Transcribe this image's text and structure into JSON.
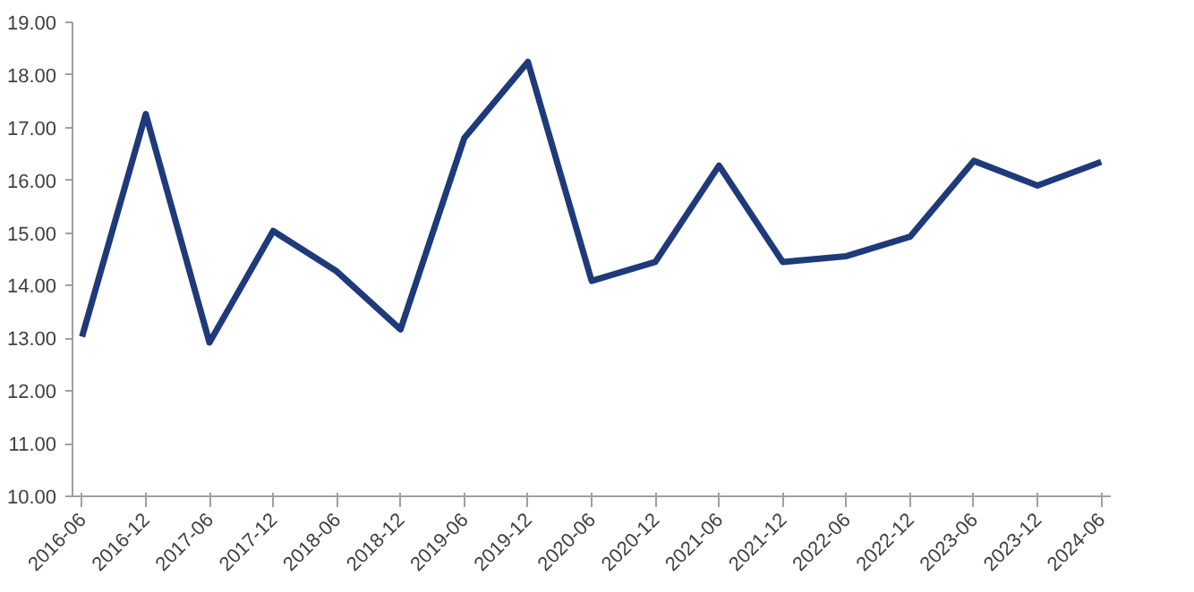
{
  "chart_data": {
    "type": "line",
    "categories": [
      "2016-06",
      "2016-12",
      "2017-06",
      "2017-12",
      "2018-06",
      "2018-12",
      "2019-06",
      "2019-12",
      "2020-06",
      "2020-12",
      "2021-06",
      "2021-12",
      "2022-06",
      "2022-12",
      "2023-06",
      "2023-12",
      "2024-06"
    ],
    "series": [
      {
        "color": "#1f3a7a",
        "values": [
          13.03,
          17.26,
          12.92,
          15.04,
          14.27,
          13.17,
          16.8,
          18.25,
          14.09,
          14.45,
          16.28,
          14.45,
          14.56,
          14.93,
          16.37,
          15.9,
          16.35
        ]
      }
    ],
    "ylim": [
      10,
      19
    ],
    "yticks": [
      {
        "value": 10,
        "label": "10.00"
      },
      {
        "value": 11,
        "label": "11.00"
      },
      {
        "value": 12,
        "label": "12.00"
      },
      {
        "value": 13,
        "label": "13.00"
      },
      {
        "value": 14,
        "label": "14.00"
      },
      {
        "value": 15,
        "label": "15.00"
      },
      {
        "value": 16,
        "label": "16.00"
      },
      {
        "value": 17,
        "label": "17.00"
      },
      {
        "value": 18,
        "label": "18.00"
      },
      {
        "value": 19,
        "label": "19.00"
      }
    ],
    "marker": "none",
    "line_style": "solid"
  }
}
